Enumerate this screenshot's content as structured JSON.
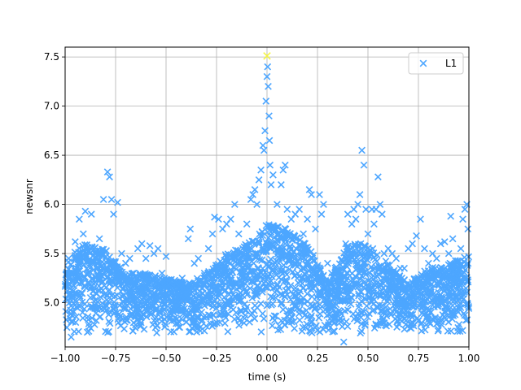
{
  "chart_data": {
    "type": "scatter",
    "title": "",
    "xlabel": "time (s)",
    "ylabel": "newsnr",
    "xlim": [
      -1.0,
      1.0
    ],
    "ylim": [
      4.55,
      7.6
    ],
    "grid": true,
    "legend_position": "top-right",
    "x_ticks": [
      -1.0,
      -0.75,
      -0.5,
      -0.25,
      0.0,
      0.25,
      0.5,
      0.75,
      1.0
    ],
    "x_tick_labels": [
      "−1.00",
      "−0.75",
      "−0.50",
      "−0.25",
      "0.00",
      "0.25",
      "0.50",
      "0.75",
      "1.00"
    ],
    "y_ticks": [
      5.0,
      5.5,
      6.0,
      6.5,
      7.0,
      7.5
    ],
    "y_tick_labels": [
      "5.0",
      "5.5",
      "6.0",
      "6.5",
      "7.0",
      "7.5"
    ],
    "marker": "x",
    "series": [
      {
        "name": "L1",
        "color": "#4da6ff",
        "points": [
          [
            -0.98,
            5.3
          ],
          [
            -0.97,
            4.65
          ],
          [
            -0.95,
            5.62
          ],
          [
            -0.93,
            5.85
          ],
          [
            -0.91,
            5.7
          ],
          [
            -0.9,
            5.93
          ],
          [
            -0.89,
            4.7
          ],
          [
            -0.87,
            5.9
          ],
          [
            -0.85,
            5.5
          ],
          [
            -0.83,
            5.65
          ],
          [
            -0.81,
            6.05
          ],
          [
            -0.79,
            6.33
          ],
          [
            -0.78,
            6.28
          ],
          [
            -0.77,
            6.05
          ],
          [
            -0.76,
            5.9
          ],
          [
            -0.74,
            6.02
          ],
          [
            -0.72,
            5.5
          ],
          [
            -0.7,
            5.4
          ],
          [
            -0.68,
            5.45
          ],
          [
            -0.66,
            5.3
          ],
          [
            -0.64,
            5.55
          ],
          [
            -0.62,
            5.6
          ],
          [
            -0.6,
            5.45
          ],
          [
            -0.58,
            5.58
          ],
          [
            -0.56,
            5.5
          ],
          [
            -0.54,
            5.55
          ],
          [
            -0.52,
            5.3
          ],
          [
            -0.5,
            5.47
          ],
          [
            -0.48,
            5.2
          ],
          [
            -0.45,
            5.2
          ],
          [
            -0.42,
            5.25
          ],
          [
            -0.39,
            5.65
          ],
          [
            -0.38,
            5.75
          ],
          [
            -0.36,
            5.4
          ],
          [
            -0.34,
            5.45
          ],
          [
            -0.31,
            5.3
          ],
          [
            -0.29,
            5.55
          ],
          [
            -0.27,
            5.7
          ],
          [
            -0.26,
            5.87
          ],
          [
            -0.24,
            5.85
          ],
          [
            -0.22,
            5.75
          ],
          [
            -0.2,
            5.8
          ],
          [
            -0.18,
            5.85
          ],
          [
            -0.16,
            6.0
          ],
          [
            -0.14,
            5.7
          ],
          [
            -0.12,
            5.55
          ],
          [
            -0.1,
            5.8
          ],
          [
            -0.08,
            6.05
          ],
          [
            -0.07,
            6.1
          ],
          [
            -0.06,
            6.15
          ],
          [
            -0.05,
            6.0
          ],
          [
            -0.04,
            6.25
          ],
          [
            -0.03,
            6.35
          ],
          [
            -0.02,
            6.6
          ],
          [
            -0.015,
            6.55
          ],
          [
            -0.01,
            6.75
          ],
          [
            -0.005,
            7.05
          ],
          [
            0.0,
            7.3
          ],
          [
            0.003,
            7.4
          ],
          [
            0.006,
            7.2
          ],
          [
            0.01,
            6.9
          ],
          [
            0.012,
            6.65
          ],
          [
            0.015,
            6.4
          ],
          [
            0.02,
            6.2
          ],
          [
            0.03,
            6.3
          ],
          [
            0.05,
            6.0
          ],
          [
            0.07,
            6.2
          ],
          [
            0.08,
            6.35
          ],
          [
            0.09,
            6.4
          ],
          [
            0.1,
            5.95
          ],
          [
            0.12,
            5.85
          ],
          [
            0.14,
            5.9
          ],
          [
            0.16,
            5.95
          ],
          [
            0.18,
            5.7
          ],
          [
            0.2,
            5.85
          ],
          [
            0.21,
            6.15
          ],
          [
            0.22,
            6.1
          ],
          [
            0.24,
            5.75
          ],
          [
            0.26,
            6.1
          ],
          [
            0.27,
            5.9
          ],
          [
            0.28,
            6.0
          ],
          [
            0.3,
            5.4
          ],
          [
            0.32,
            5.3
          ],
          [
            0.35,
            5.2
          ],
          [
            0.37,
            5.3
          ],
          [
            0.38,
            4.6
          ],
          [
            0.39,
            5.6
          ],
          [
            0.4,
            5.9
          ],
          [
            0.42,
            5.8
          ],
          [
            0.43,
            5.95
          ],
          [
            0.44,
            5.85
          ],
          [
            0.45,
            6.0
          ],
          [
            0.46,
            6.1
          ],
          [
            0.47,
            6.55
          ],
          [
            0.48,
            6.4
          ],
          [
            0.49,
            5.95
          ],
          [
            0.5,
            5.7
          ],
          [
            0.52,
            5.95
          ],
          [
            0.53,
            5.8
          ],
          [
            0.54,
            5.95
          ],
          [
            0.55,
            6.28
          ],
          [
            0.56,
            6.0
          ],
          [
            0.57,
            5.9
          ],
          [
            0.58,
            5.5
          ],
          [
            0.6,
            5.55
          ],
          [
            0.62,
            5.5
          ],
          [
            0.64,
            5.45
          ],
          [
            0.66,
            5.35
          ],
          [
            0.68,
            5.35
          ],
          [
            0.7,
            5.55
          ],
          [
            0.72,
            5.6
          ],
          [
            0.74,
            5.68
          ],
          [
            0.76,
            5.85
          ],
          [
            0.78,
            5.55
          ],
          [
            0.8,
            5.4
          ],
          [
            0.82,
            5.5
          ],
          [
            0.84,
            5.45
          ],
          [
            0.86,
            5.6
          ],
          [
            0.88,
            5.62
          ],
          [
            0.9,
            5.5
          ],
          [
            0.91,
            5.88
          ],
          [
            0.92,
            5.65
          ],
          [
            0.94,
            5.4
          ],
          [
            0.96,
            5.55
          ],
          [
            0.97,
            5.85
          ],
          [
            0.98,
            5.95
          ],
          [
            0.99,
            6.0
          ],
          [
            0.995,
            5.75
          ]
        ]
      },
      {
        "name": "",
        "color": "#f5f542",
        "points": [
          [
            0.0,
            7.51
          ]
        ]
      }
    ],
    "dense_band": {
      "note": "background noise cloud",
      "x_range": [
        -1.0,
        1.0
      ],
      "y_min": 4.68,
      "y_max_by_x": [
        [
          -1.0,
          5.45
        ],
        [
          -0.9,
          5.6
        ],
        [
          -0.8,
          5.55
        ],
        [
          -0.7,
          5.3
        ],
        [
          -0.6,
          5.3
        ],
        [
          -0.5,
          5.25
        ],
        [
          -0.4,
          5.2
        ],
        [
          -0.3,
          5.3
        ],
        [
          -0.2,
          5.5
        ],
        [
          -0.1,
          5.6
        ],
        [
          0.0,
          5.8
        ],
        [
          0.1,
          5.75
        ],
        [
          0.2,
          5.6
        ],
        [
          0.3,
          5.2
        ],
        [
          0.4,
          5.6
        ],
        [
          0.5,
          5.6
        ],
        [
          0.6,
          5.4
        ],
        [
          0.7,
          5.2
        ],
        [
          0.8,
          5.35
        ],
        [
          0.9,
          5.4
        ],
        [
          1.0,
          5.5
        ]
      ]
    }
  }
}
